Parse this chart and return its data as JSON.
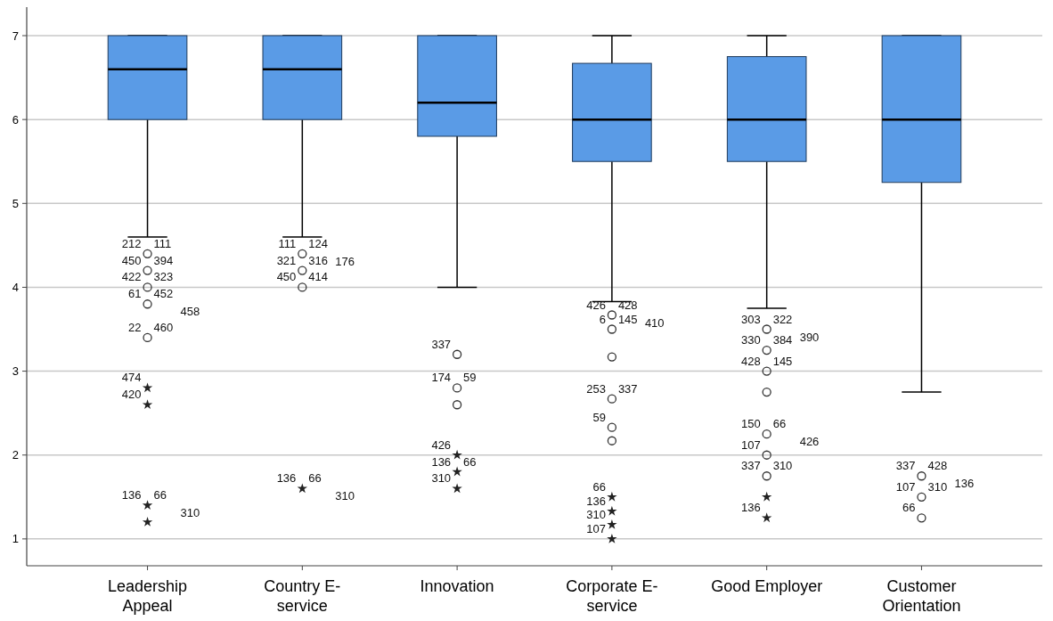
{
  "chart_data": {
    "type": "box",
    "categories": [
      "Leadership Appeal",
      "Country E-service",
      "Innovation",
      "Corporate E-service",
      "Good Employer",
      "Customer Orientation"
    ],
    "color": "#5a9be6",
    "boxes": [
      {
        "low": 4.6,
        "q1": 6,
        "median": 6.6,
        "q3": 7,
        "high": 7
      },
      {
        "low": 4.6,
        "q1": 6,
        "median": 6.6,
        "q3": 7,
        "high": 7
      },
      {
        "low": 4,
        "q1": 5.8,
        "median": 6.2,
        "q3": 7,
        "high": 7
      },
      {
        "low": 3.83,
        "q1": 5.5,
        "median": 6,
        "q3": 6.67,
        "high": 7
      },
      {
        "low": 3.75,
        "q1": 5.5,
        "median": 6,
        "q3": 6.75,
        "high": 7
      },
      {
        "low": 2.75,
        "q1": 5.25,
        "median": 6,
        "q3": 7,
        "high": 7
      }
    ],
    "series": [
      {
        "type": "scatter",
        "marker": "circle",
        "color": "#333333",
        "x": [
          "Leadership Appeal",
          "Leadership Appeal",
          "Leadership Appeal",
          "Leadership Appeal",
          "Leadership Appeal",
          "Country E-service",
          "Country E-service",
          "Country E-service",
          "Innovation",
          "Innovation",
          "Innovation",
          "Corporate E-service",
          "Corporate E-service",
          "Corporate E-service",
          "Corporate E-service",
          "Corporate E-service",
          "Corporate E-service",
          "Good Employer",
          "Good Employer",
          "Good Employer",
          "Good Employer",
          "Good Employer",
          "Good Employer",
          "Good Employer",
          "Customer Orientation",
          "Customer Orientation",
          "Customer Orientation"
        ],
        "values": [
          4.4,
          4.2,
          4.0,
          3.8,
          3.4,
          4.4,
          4.2,
          4.0,
          3.2,
          2.8,
          2.6,
          3.67,
          3.5,
          3.17,
          2.67,
          2.33,
          2.17,
          3.5,
          3.25,
          3.0,
          2.75,
          2.25,
          2.0,
          1.75,
          1.75,
          1.5,
          1.25
        ]
      },
      {
        "type": "scatter",
        "marker": "star",
        "color": "#222222",
        "x": [
          "Leadership Appeal",
          "Leadership Appeal",
          "Leadership Appeal",
          "Leadership Appeal",
          "Country E-service",
          "Innovation",
          "Innovation",
          "Innovation",
          "Corporate E-service",
          "Corporate E-service",
          "Corporate E-service",
          "Corporate E-service",
          "Good Employer",
          "Good Employer"
        ],
        "values": [
          2.8,
          2.6,
          1.4,
          1.2,
          1.6,
          2.0,
          1.8,
          1.6,
          1.5,
          1.33,
          1.17,
          1.0,
          1.5,
          1.25
        ]
      }
    ],
    "ylim": [
      0.68,
      7.34
    ],
    "yticks": [
      1,
      2,
      3,
      4,
      5,
      6,
      7
    ],
    "grid": "y",
    "annotations": [
      {
        "text": "212",
        "x": "Leadership Appeal",
        "y": 4.4
      },
      {
        "text": "111",
        "x": "Leadership Appeal",
        "y": 4.4
      },
      {
        "text": "450",
        "x": "Leadership Appeal",
        "y": 4.2
      },
      {
        "text": "394",
        "x": "Leadership Appeal",
        "y": 4.2
      },
      {
        "text": "422",
        "x": "Leadership Appeal",
        "y": 4.0
      },
      {
        "text": "323",
        "x": "Leadership Appeal",
        "y": 4.0
      },
      {
        "text": "61",
        "x": "Leadership Appeal",
        "y": 3.8
      },
      {
        "text": "452",
        "x": "Leadership Appeal",
        "y": 3.8
      },
      {
        "text": "458",
        "x": "Leadership Appeal",
        "y": 3.8
      },
      {
        "text": "22",
        "x": "Leadership Appeal",
        "y": 3.4
      },
      {
        "text": "460",
        "x": "Leadership Appeal",
        "y": 3.4
      },
      {
        "text": "474",
        "x": "Leadership Appeal",
        "y": 2.8
      },
      {
        "text": "420",
        "x": "Leadership Appeal",
        "y": 2.6
      },
      {
        "text": "136",
        "x": "Leadership Appeal",
        "y": 1.4
      },
      {
        "text": "66",
        "x": "Leadership Appeal",
        "y": 1.4
      },
      {
        "text": "310",
        "x": "Leadership Appeal",
        "y": 1.4
      },
      {
        "text": "111",
        "x": "Country E-service",
        "y": 4.4
      },
      {
        "text": "124",
        "x": "Country E-service",
        "y": 4.4
      },
      {
        "text": "176",
        "x": "Country E-service",
        "y": 4.4
      },
      {
        "text": "321",
        "x": "Country E-service",
        "y": 4.2
      },
      {
        "text": "316",
        "x": "Country E-service",
        "y": 4.2
      },
      {
        "text": "450",
        "x": "Country E-service",
        "y": 4.0
      },
      {
        "text": "414",
        "x": "Country E-service",
        "y": 4.0
      },
      {
        "text": "136",
        "x": "Country E-service",
        "y": 1.6
      },
      {
        "text": "66",
        "x": "Country E-service",
        "y": 1.6
      },
      {
        "text": "310",
        "x": "Country E-service",
        "y": 1.6
      },
      {
        "text": "337",
        "x": "Innovation",
        "y": 3.2
      },
      {
        "text": "174",
        "x": "Innovation",
        "y": 2.8
      },
      {
        "text": "59",
        "x": "Innovation",
        "y": 2.8
      },
      {
        "text": "426",
        "x": "Innovation",
        "y": 2.0
      },
      {
        "text": "136",
        "x": "Innovation",
        "y": 1.8
      },
      {
        "text": "66",
        "x": "Innovation",
        "y": 1.8
      },
      {
        "text": "310",
        "x": "Innovation",
        "y": 1.6
      },
      {
        "text": "426",
        "x": "Corporate E-service",
        "y": 3.67
      },
      {
        "text": "428",
        "x": "Corporate E-service",
        "y": 3.67
      },
      {
        "text": "410",
        "x": "Corporate E-service",
        "y": 3.67
      },
      {
        "text": "6",
        "x": "Corporate E-service",
        "y": 3.5
      },
      {
        "text": "145",
        "x": "Corporate E-service",
        "y": 3.5
      },
      {
        "text": "253",
        "x": "Corporate E-service",
        "y": 2.67
      },
      {
        "text": "337",
        "x": "Corporate E-service",
        "y": 2.67
      },
      {
        "text": "59",
        "x": "Corporate E-service",
        "y": 2.33
      },
      {
        "text": "66",
        "x": "Corporate E-service",
        "y": 1.5
      },
      {
        "text": "136",
        "x": "Corporate E-service",
        "y": 1.33
      },
      {
        "text": "310",
        "x": "Corporate E-service",
        "y": 1.17
      },
      {
        "text": "107",
        "x": "Corporate E-service",
        "y": 1.0
      },
      {
        "text": "303",
        "x": "Good Employer",
        "y": 3.5
      },
      {
        "text": "322",
        "x": "Good Employer",
        "y": 3.5
      },
      {
        "text": "390",
        "x": "Good Employer",
        "y": 3.5
      },
      {
        "text": "330",
        "x": "Good Employer",
        "y": 3.25
      },
      {
        "text": "384",
        "x": "Good Employer",
        "y": 3.25
      },
      {
        "text": "428",
        "x": "Good Employer",
        "y": 3.0
      },
      {
        "text": "145",
        "x": "Good Employer",
        "y": 3.0
      },
      {
        "text": "150",
        "x": "Good Employer",
        "y": 2.25
      },
      {
        "text": "66",
        "x": "Good Employer",
        "y": 2.25
      },
      {
        "text": "426",
        "x": "Good Employer",
        "y": 2.25
      },
      {
        "text": "107",
        "x": "Good Employer",
        "y": 2.0
      },
      {
        "text": "337",
        "x": "Good Employer",
        "y": 1.75
      },
      {
        "text": "310",
        "x": "Good Employer",
        "y": 1.75
      },
      {
        "text": "136",
        "x": "Good Employer",
        "y": 1.25
      },
      {
        "text": "107",
        "x": "Customer Orientation",
        "y": 1.5
      },
      {
        "text": "310",
        "x": "Customer Orientation",
        "y": 1.5
      },
      {
        "text": "337",
        "x": "Customer Orientation",
        "y": 1.75
      },
      {
        "text": "428",
        "x": "Customer Orientation",
        "y": 1.75
      },
      {
        "text": "136",
        "x": "Customer Orientation",
        "y": 1.75
      },
      {
        "text": "66",
        "x": "Customer Orientation",
        "y": 1.25
      }
    ]
  }
}
